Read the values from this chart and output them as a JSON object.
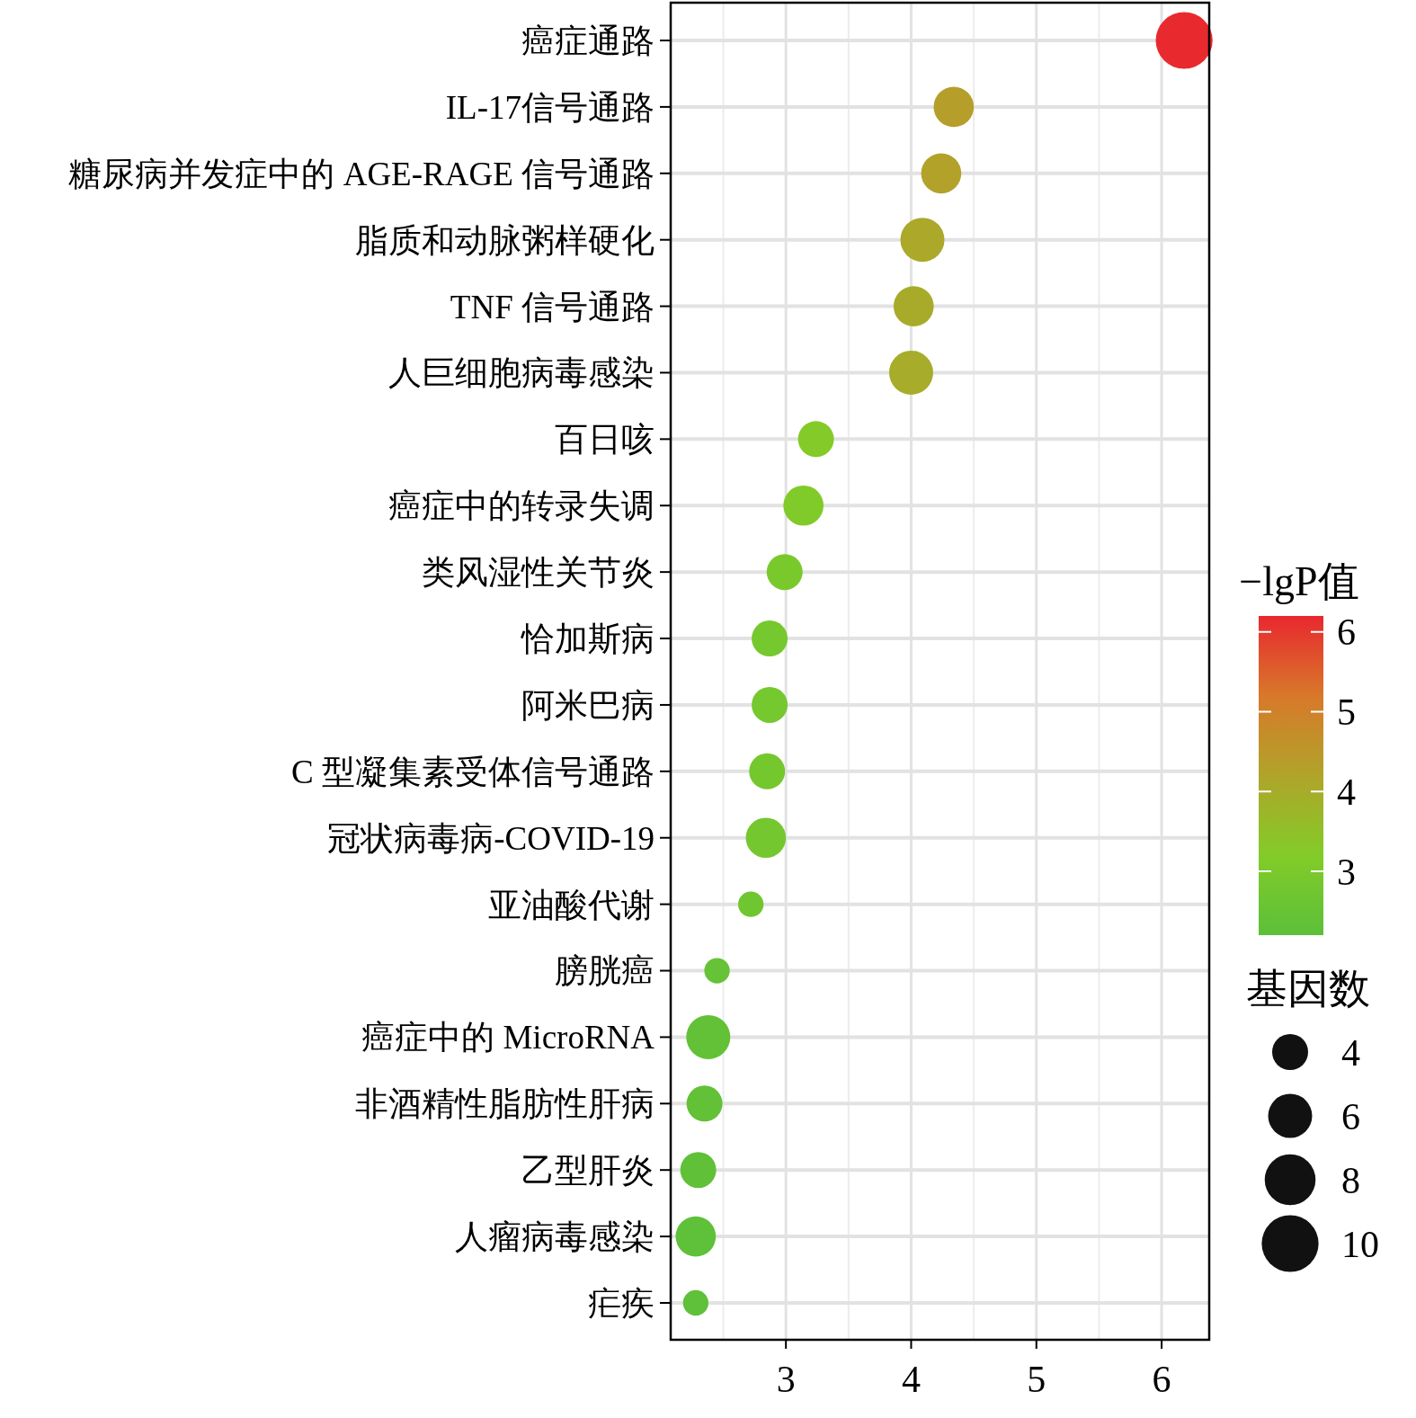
{
  "chart_data": {
    "type": "bubble",
    "categories": [
      "癌症通路",
      "IL-17信号通路",
      "糖尿病并发症中的 AGE-RAGE 信号通路",
      "脂质和动脉粥样硬化",
      "TNF 信号通路",
      "人巨细胞病毒感染",
      "百日咳",
      "癌症中的转录失调",
      "类风湿性关节炎",
      "恰加斯病",
      "阿米巴病",
      "C 型凝集素受体信号通路",
      "冠状病毒病-COVID-19",
      "亚油酸代谢",
      "膀胱癌",
      "癌症中的 MicroRNA",
      "非酒精性脂肪性肝病",
      "乙型肝炎",
      "人瘤病毒感染",
      "疟疾"
    ],
    "orientation": "horizontal",
    "values": [
      6.18,
      4.34,
      4.24,
      4.09,
      4.02,
      4.0,
      3.24,
      3.14,
      2.99,
      2.87,
      2.87,
      2.85,
      2.84,
      2.72,
      2.45,
      2.38,
      2.35,
      2.3,
      2.28,
      2.28
    ],
    "cvalues": [
      6.18,
      4.34,
      4.24,
      4.09,
      4.02,
      4.0,
      3.24,
      3.14,
      2.99,
      2.87,
      2.87,
      2.85,
      2.84,
      2.72,
      2.45,
      2.38,
      2.35,
      2.3,
      2.28,
      2.28
    ],
    "sizes": [
      10,
      5,
      5,
      6,
      5,
      6,
      4,
      5,
      4,
      4,
      4,
      4,
      5,
      2,
      2,
      6,
      4,
      4,
      5,
      2
    ],
    "size_legend": [
      4,
      6,
      8,
      10
    ],
    "legend_title": "基因数",
    "clabel": "−lgP值",
    "clim": [
      2.2,
      6.2
    ],
    "cticks": [
      3,
      4,
      5,
      6
    ],
    "xlim": [
      2.08,
      6.38
    ],
    "xticks": [
      3,
      4,
      5,
      6
    ],
    "grid": true
  }
}
